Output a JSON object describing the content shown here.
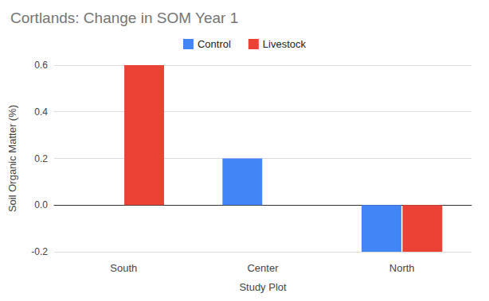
{
  "chart_data": {
    "type": "bar",
    "title": "Cortlands: Change in SOM Year 1",
    "x_label": "Study Plot",
    "y_label": "Soil Organic Matter (%)",
    "categories": [
      "South",
      "Center",
      "North"
    ],
    "series": [
      {
        "name": "Control",
        "color": "#4285f4",
        "values": [
          0,
          0.2,
          -0.2
        ]
      },
      {
        "name": "Livestock",
        "color": "#ea4335",
        "values": [
          0.6,
          0,
          -0.2
        ]
      }
    ],
    "ylim": [
      -0.2,
      0.6
    ],
    "yticks": [
      -0.2,
      {
        "value": 0,
        "label": "0.0"
      },
      0.2,
      0.4,
      0.6
    ],
    "grid": true,
    "legend": "top"
  }
}
